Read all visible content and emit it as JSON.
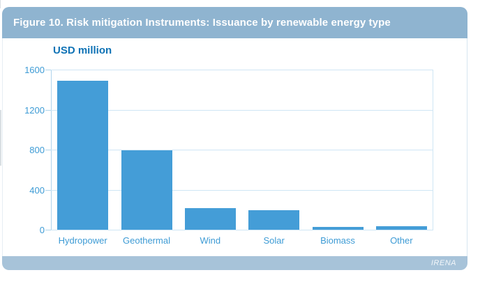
{
  "figure": {
    "title": "Figure 10. Risk mitigation Instruments: Issuance by renewable energy type",
    "source_label": "IRENA"
  },
  "colors": {
    "header_bg": "#8fb4d0",
    "footer_bg": "#a7c3d9",
    "bar": "#449dd7",
    "axis_text": "#3d9bd5",
    "grid": "#cfe6f5",
    "axis_line": "#afd4ec",
    "chart_title_text": "#0e72b5"
  },
  "chart_data": {
    "type": "bar",
    "title": "USD million",
    "ylabel": "USD million",
    "xlabel": "",
    "categories": [
      "Hydropower",
      "Geothermal",
      "Wind",
      "Solar",
      "Biomass",
      "Other"
    ],
    "values": [
      1490,
      790,
      215,
      195,
      25,
      35
    ],
    "ylim": [
      0,
      1600
    ],
    "yticks": [
      0,
      400,
      800,
      1200,
      1600
    ],
    "grid": true,
    "legend": false
  }
}
